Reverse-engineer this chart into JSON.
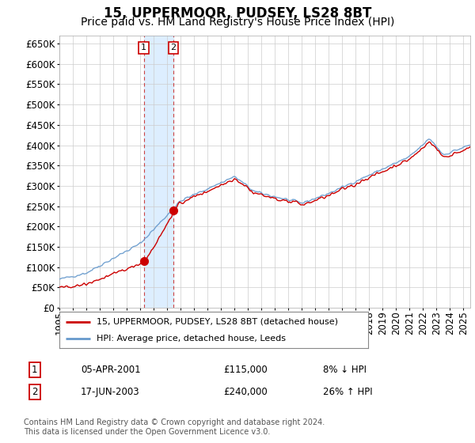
{
  "title": "15, UPPERMOOR, PUDSEY, LS28 8BT",
  "subtitle": "Price paid vs. HM Land Registry's House Price Index (HPI)",
  "ylabel_ticks": [
    0,
    50000,
    100000,
    150000,
    200000,
    250000,
    300000,
    350000,
    400000,
    450000,
    500000,
    550000,
    600000,
    650000
  ],
  "ylim": [
    0,
    670000
  ],
  "xlim_start": 1995.0,
  "xlim_end": 2025.5,
  "sale1_date": 2001.26,
  "sale1_price": 115000,
  "sale1_label": "1",
  "sale1_text": "05-APR-2001",
  "sale1_amount": "£115,000",
  "sale1_hpi": "8% ↓ HPI",
  "sale2_date": 2003.46,
  "sale2_price": 240000,
  "sale2_label": "2",
  "sale2_text": "17-JUN-2003",
  "sale2_amount": "£240,000",
  "sale2_hpi": "26% ↑ HPI",
  "red_line_color": "#cc0000",
  "blue_line_color": "#6699cc",
  "shade_color": "#ddeeff",
  "legend_label_red": "15, UPPERMOOR, PUDSEY, LS28 8BT (detached house)",
  "legend_label_blue": "HPI: Average price, detached house, Leeds",
  "footnote": "Contains HM Land Registry data © Crown copyright and database right 2024.\nThis data is licensed under the Open Government Licence v3.0.",
  "background_color": "#ffffff",
  "grid_color": "#cccccc",
  "title_fontsize": 12,
  "subtitle_fontsize": 10,
  "tick_fontsize": 8.5
}
